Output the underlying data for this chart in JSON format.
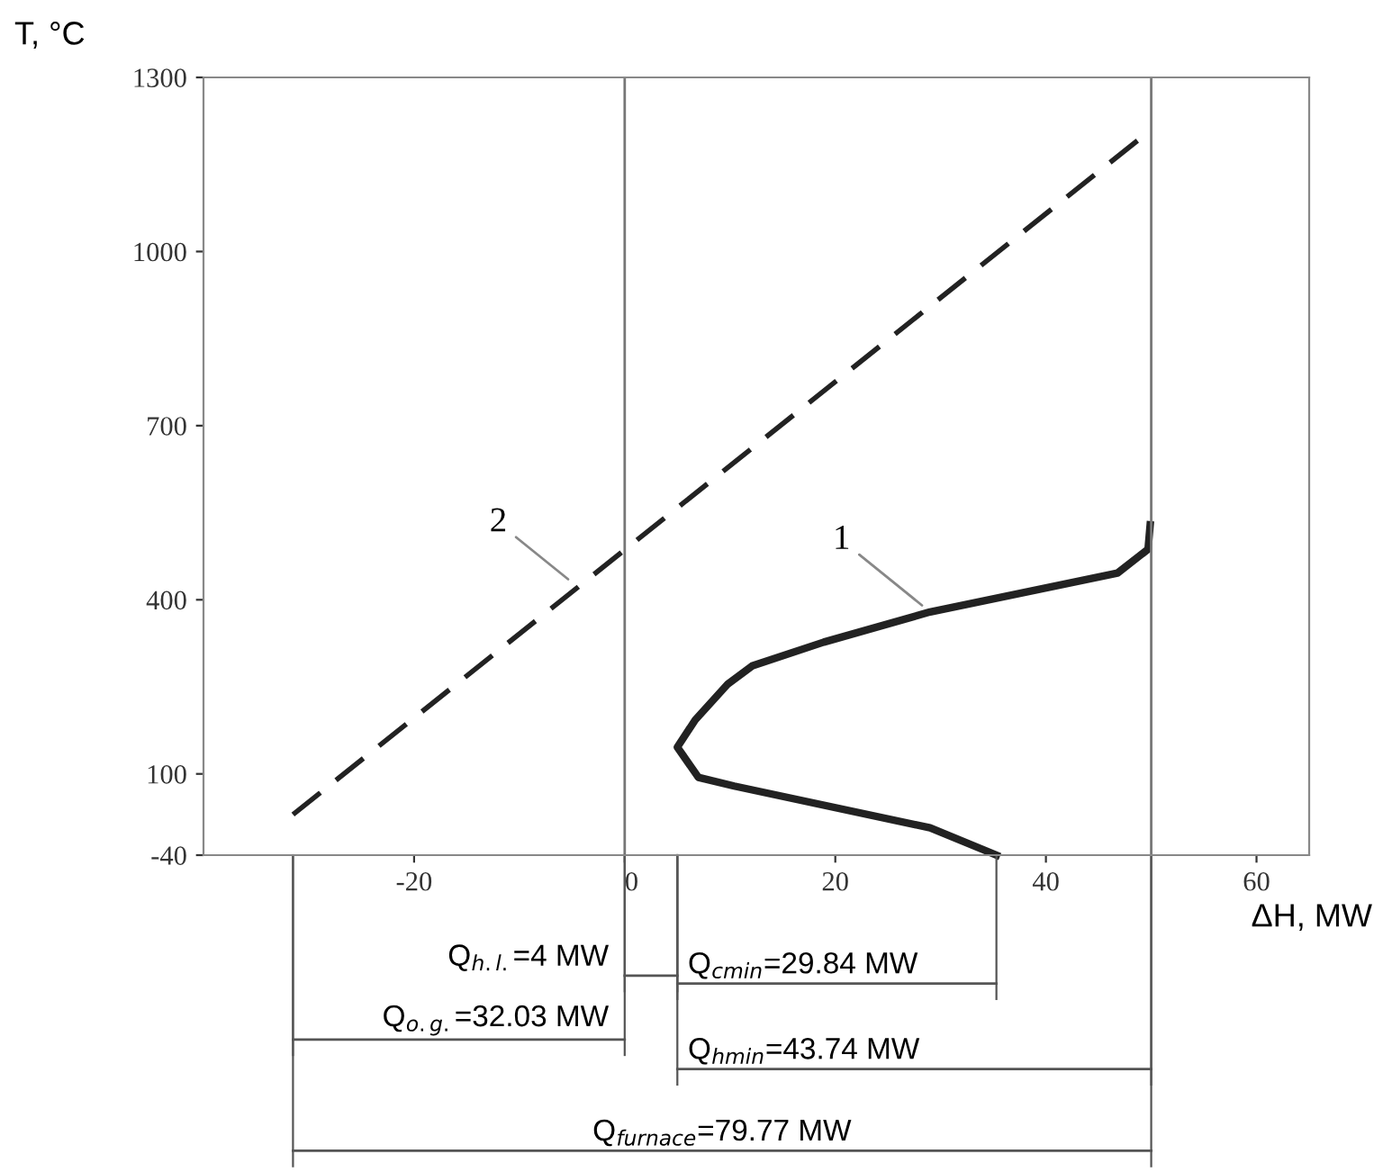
{
  "chart_data": {
    "type": "line",
    "xlabel": "ΔH, MW",
    "ylabel": "T, °C",
    "xlim": [
      -40,
      65
    ],
    "xticks": [
      -20,
      0,
      20,
      40,
      60
    ],
    "ylim": [
      -40,
      1300
    ],
    "yticks": [
      -40,
      100,
      400,
      700,
      1000,
      1300
    ],
    "grid": false,
    "marker": "none",
    "series": [
      {
        "color": "#222222",
        "line_style": "solid",
        "x": [
          35.3,
          29.0,
          10.4,
          7.0,
          5.0,
          6.7,
          9.8,
          12.1,
          18.9,
          29.0,
          46.8,
          49.7,
          49.9
        ],
        "values": [
          -40,
          7,
          79,
          94,
          146,
          193,
          255,
          286,
          327,
          379,
          446,
          487,
          529
        ]
      },
      {
        "color": "#222222",
        "line_style": "dashed",
        "x": [
          -31.5,
          50
        ],
        "values": [
          30,
          1210
        ]
      }
    ],
    "ref_lines": [
      {
        "axis": "x",
        "value": 0
      },
      {
        "axis": "x",
        "value": 50
      }
    ],
    "annotations": [
      "Q$_{h.l.}$=4 MW",
      "Q$_{cmin}$=29.84 MW",
      "Q$_{o.g.}$=32.03 MW",
      "Q$_{hmin}$=43.74 MW",
      "Q$_{furnace}$=79.77 MW",
      {
        "text": "1",
        "x": 28.6,
        "y": 385
      },
      {
        "text": "2",
        "x": -5,
        "y": 430
      }
    ]
  }
}
